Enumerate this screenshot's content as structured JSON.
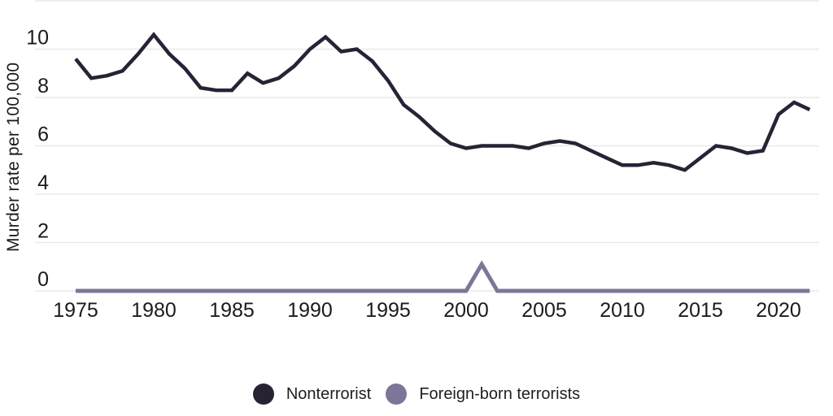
{
  "page": {
    "background": "#ffffff"
  },
  "chart_data": {
    "type": "line",
    "title": "",
    "xlabel": "",
    "ylabel": "Murder rate per 100,000",
    "x": [
      1975,
      1976,
      1977,
      1978,
      1979,
      1980,
      1981,
      1982,
      1983,
      1984,
      1985,
      1986,
      1987,
      1988,
      1989,
      1990,
      1991,
      1992,
      1993,
      1994,
      1995,
      1996,
      1997,
      1998,
      1999,
      2000,
      2001,
      2002,
      2003,
      2004,
      2005,
      2006,
      2007,
      2008,
      2009,
      2010,
      2011,
      2012,
      2013,
      2014,
      2015,
      2016,
      2017,
      2018,
      2019,
      2020,
      2021,
      2022
    ],
    "series": [
      {
        "name": "Nonterrorist",
        "color": "#292235",
        "values": [
          9.6,
          8.8,
          8.9,
          9.1,
          9.8,
          10.6,
          9.8,
          9.2,
          8.4,
          8.3,
          8.3,
          9.0,
          8.6,
          8.8,
          9.3,
          10.0,
          10.5,
          9.9,
          10.0,
          9.5,
          8.7,
          7.7,
          7.2,
          6.6,
          6.1,
          5.9,
          6.0,
          6.0,
          6.0,
          5.9,
          6.1,
          6.2,
          6.1,
          5.8,
          5.5,
          5.2,
          5.2,
          5.3,
          5.2,
          5.0,
          5.5,
          6.0,
          5.9,
          5.7,
          5.8,
          7.3,
          7.8,
          7.5
        ]
      },
      {
        "name": "Foreign-born terrorists",
        "color": "#7d7699",
        "values": [
          0,
          0,
          0,
          0,
          0,
          0,
          0,
          0,
          0,
          0,
          0,
          0,
          0,
          0,
          0,
          0,
          0,
          0,
          0,
          0,
          0,
          0,
          0,
          0,
          0,
          0,
          1.1,
          0,
          0,
          0,
          0,
          0,
          0,
          0,
          0,
          0,
          0,
          0,
          0,
          0,
          0,
          0,
          0,
          0,
          0,
          0,
          0,
          0
        ]
      }
    ],
    "xticks": [
      1975,
      1980,
      1985,
      1990,
      1995,
      2000,
      2005,
      2010,
      2015,
      2020
    ],
    "yticks": [
      0,
      2,
      4,
      6,
      8,
      10
    ],
    "ylim": [
      0,
      12
    ],
    "grid": true,
    "gridline_color": "#e9e9e9",
    "tick_label_color": "#1b1b1b",
    "legend_position": "bottom"
  }
}
